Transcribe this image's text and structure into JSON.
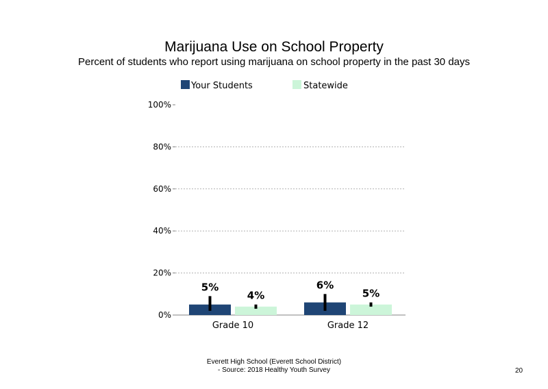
{
  "chart_data": {
    "type": "bar",
    "title": "Marijuana  Use on School Property",
    "subtitle": "Percent of students  who report using marijuana  on school property in the past 30 days",
    "categories": [
      "Grade 10",
      "Grade 12"
    ],
    "series": [
      {
        "name": "Your Students",
        "values": [
          5,
          6
        ],
        "labels": [
          "5%",
          "6%"
        ],
        "ci": [
          [
            2,
            9
          ],
          [
            2,
            10
          ]
        ],
        "color": "#1f4575"
      },
      {
        "name": "Statewide",
        "values": [
          4,
          5
        ],
        "labels": [
          "4%",
          "5%"
        ],
        "ci": [
          [
            3,
            5
          ],
          [
            4,
            6
          ]
        ],
        "color": "#ccf5d9"
      }
    ],
    "ylim": [
      0,
      100
    ],
    "yticks": [
      "0%",
      "20%",
      "40%",
      "60%",
      "80%",
      "100%"
    ],
    "ytick_values": [
      0,
      20,
      40,
      60,
      80,
      100
    ],
    "grid": true,
    "legend": "top-left",
    "xlabel": "",
    "ylabel": ""
  },
  "footer": {
    "line1": "Everett High  School (Everett School District)",
    "line2": "- Source: 2018 Healthy  Youth Survey"
  },
  "page_number": "20",
  "colors": {
    "grid": "#b0b0b0",
    "axis": "#808080",
    "error_bar": "#000000"
  }
}
